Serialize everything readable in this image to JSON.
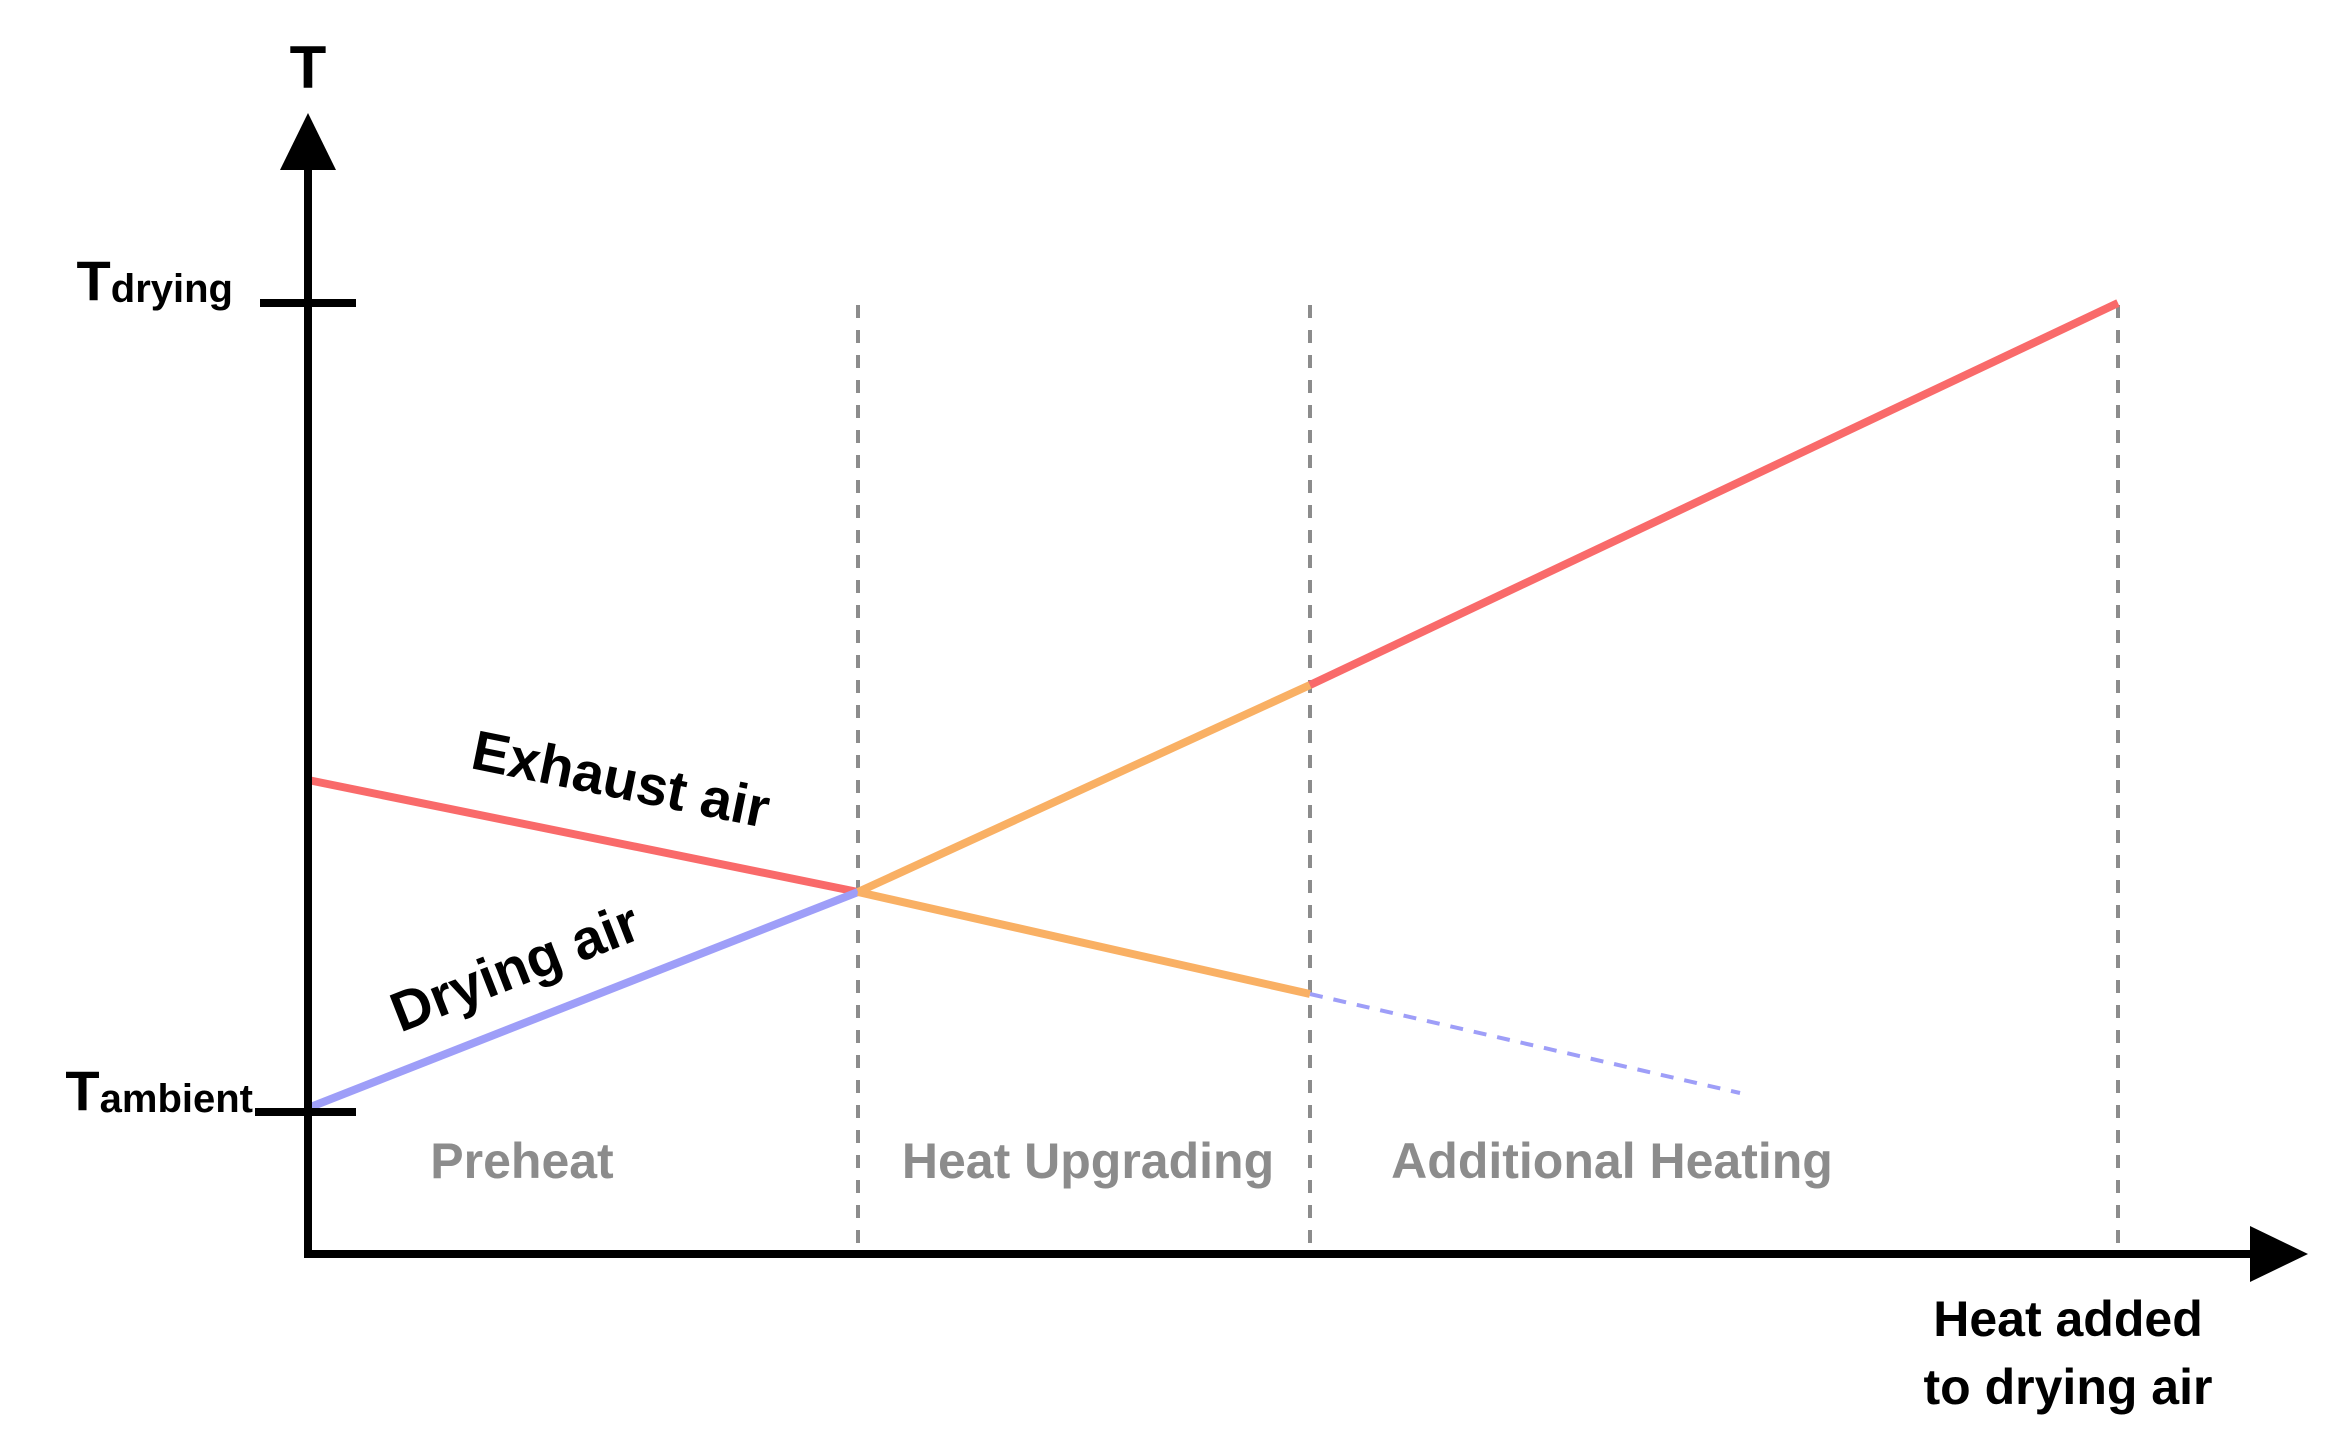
{
  "axes": {
    "y_label": "T",
    "x_label_line1": "Heat added",
    "x_label_line2": "to drying air",
    "tick_top_main": "T",
    "tick_top_sub": "drying",
    "tick_bottom_main": "T",
    "tick_bottom_sub": "ambient"
  },
  "regions": {
    "preheat": "Preheat",
    "heat_upgrading": "Heat Upgrading",
    "additional_heating": "Additional Heating"
  },
  "curves": {
    "exhaust_label": "Exhaust air",
    "drying_label": "Drying air"
  },
  "colors": {
    "exhaust": "#f96a6a",
    "drying": "#9e9ef8",
    "upgrading": "#f9b064",
    "divider": "#8c8c8c",
    "axis": "#000000"
  }
}
